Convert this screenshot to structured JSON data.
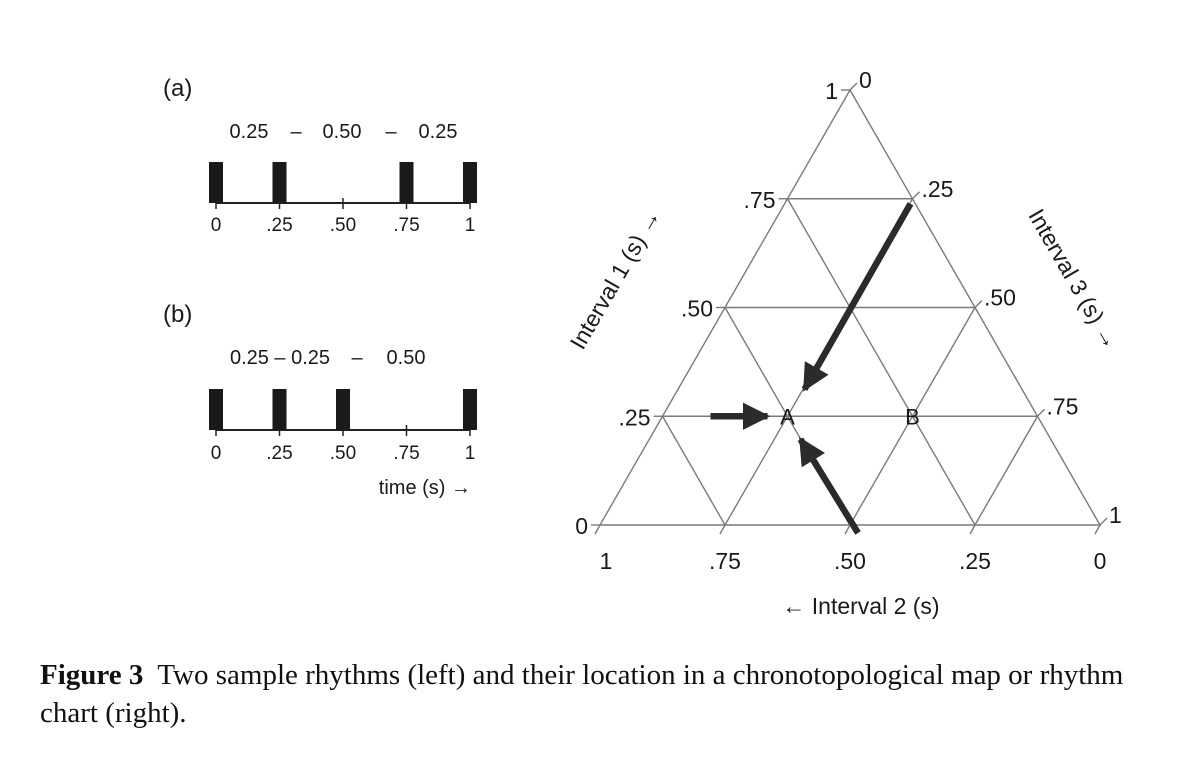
{
  "panel_a": {
    "label": "(a)",
    "durations": [
      "0.25",
      "–",
      "0.50",
      "–",
      "0.25"
    ],
    "ticks": [
      "0",
      ".25",
      ".50",
      ".75",
      "1"
    ],
    "onsets": [
      0,
      0.25,
      0.75,
      1
    ]
  },
  "panel_b": {
    "label": "(b)",
    "durations": [
      "0.25 – 0.25",
      "–",
      "0.50"
    ],
    "ticks": [
      "0",
      ".25",
      ".50",
      ".75",
      "1"
    ],
    "onsets": [
      0,
      0.25,
      0.5,
      1
    ],
    "xlabel": "time (s) →"
  },
  "ternary": {
    "left_axis_label": "Interval 1 (s) →",
    "right_axis_label": "Interval 3 (s) →",
    "bottom_axis_label": "← Interval 2 (s)",
    "left_ticks": [
      "0",
      ".25",
      ".50",
      ".75",
      "1"
    ],
    "right_ticks": [
      "0",
      ".25",
      ".50",
      ".75",
      "1"
    ],
    "bottom_ticks": [
      "1",
      ".75",
      ".50",
      ".25",
      "0"
    ],
    "points": [
      {
        "label": "A",
        "interval1": 0.25,
        "interval2": 0.5,
        "interval3": 0.25
      },
      {
        "label": "B",
        "interval1": 0.25,
        "interval2": 0.25,
        "interval3": 0.5
      }
    ]
  },
  "caption": {
    "label": "Figure 3",
    "text": "Two sample rhythms (left) and their location in a chronotopological map or rhythm chart (right)."
  }
}
